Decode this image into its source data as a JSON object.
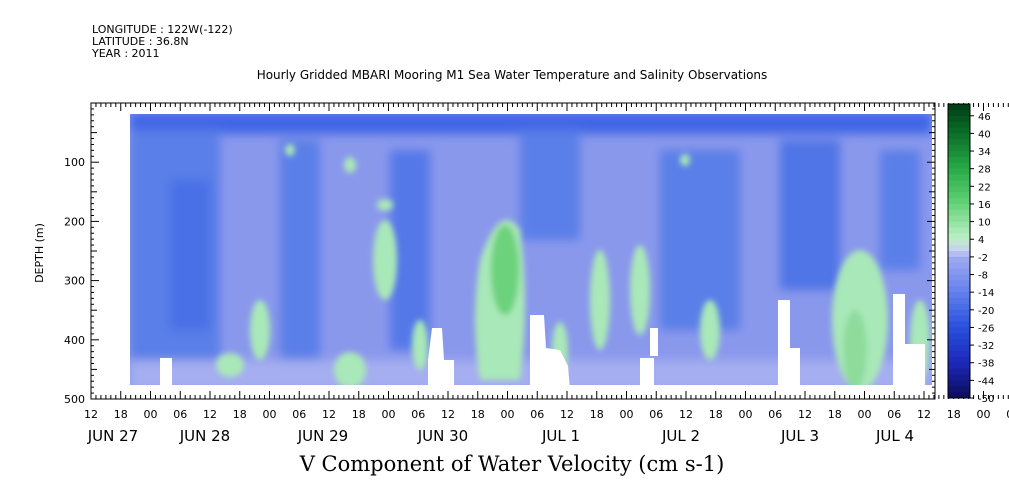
{
  "meta": {
    "longitude": "LONGITUDE : 122W(-122)",
    "latitude": "LATITUDE : 36.8N",
    "year": "YEAR : 2011"
  },
  "chart_data": {
    "type": "heatmap",
    "title": "Hourly Gridded MBARI Mooring M1 Sea Water Temperature and Salinity Observations",
    "xlabel": "V Component of Water Velocity (cm s-1)",
    "ylabel": "DEPTH (m)",
    "ylim": [
      500,
      0
    ],
    "y_ticks": [
      100,
      200,
      300,
      400,
      500
    ],
    "hour_ticks": [
      "12",
      "18",
      "00",
      "06",
      "12",
      "18",
      "00",
      "06",
      "12",
      "18",
      "00",
      "06",
      "12",
      "18",
      "00",
      "06",
      "12",
      "18",
      "00",
      "06",
      "12",
      "18",
      "00",
      "06",
      "12",
      "18",
      "00",
      "06",
      "12",
      "18",
      "00",
      "06",
      "12",
      "18",
      "00",
      "06",
      "12"
    ],
    "date_labels": [
      "JUN 27",
      "JUN 28",
      "JUN 29",
      "JUN 30",
      "JUL  1",
      "JUL  2",
      "JUL  3",
      "JUL  4"
    ],
    "colorbar_ticks": [
      "46",
      "40",
      "34",
      "28",
      "22",
      "16",
      "10",
      "4",
      "-2",
      "-8",
      "-14",
      "-20",
      "-26",
      "-32",
      "-38",
      "-44",
      "-50"
    ],
    "colorbar_range": [
      -50,
      50
    ],
    "value_range_shown": [
      -30,
      15
    ],
    "dominant_values": "mostly -20 to -2 (blue to light purple), with patches of 4 to 16 (light to medium green)",
    "green_patches": [
      {
        "time": "JUN 30 ~21:00-JUL 1 ~03:00",
        "depth": [
          200,
          450
        ],
        "max": 16
      },
      {
        "time": "JUN 29 ~18:00",
        "depth": [
          220,
          320
        ],
        "max": 10
      },
      {
        "time": "JUL 3 ~18:00-JUL 4 ~00:00",
        "depth": [
          250,
          480
        ],
        "max": 10
      },
      {
        "time": "JUL 1 ~06:00-12:00",
        "depth": [
          240,
          450
        ],
        "max": 10
      }
    ],
    "missing_data_regions": [
      "JUN 30 ~08:00-12:00 below 380m",
      "JUL 1 ~04:00-08:00 below 360m",
      "JUL 3 ~09:00 below 340m",
      "JUL 4 ~06:00-09:00 below 330m"
    ]
  }
}
